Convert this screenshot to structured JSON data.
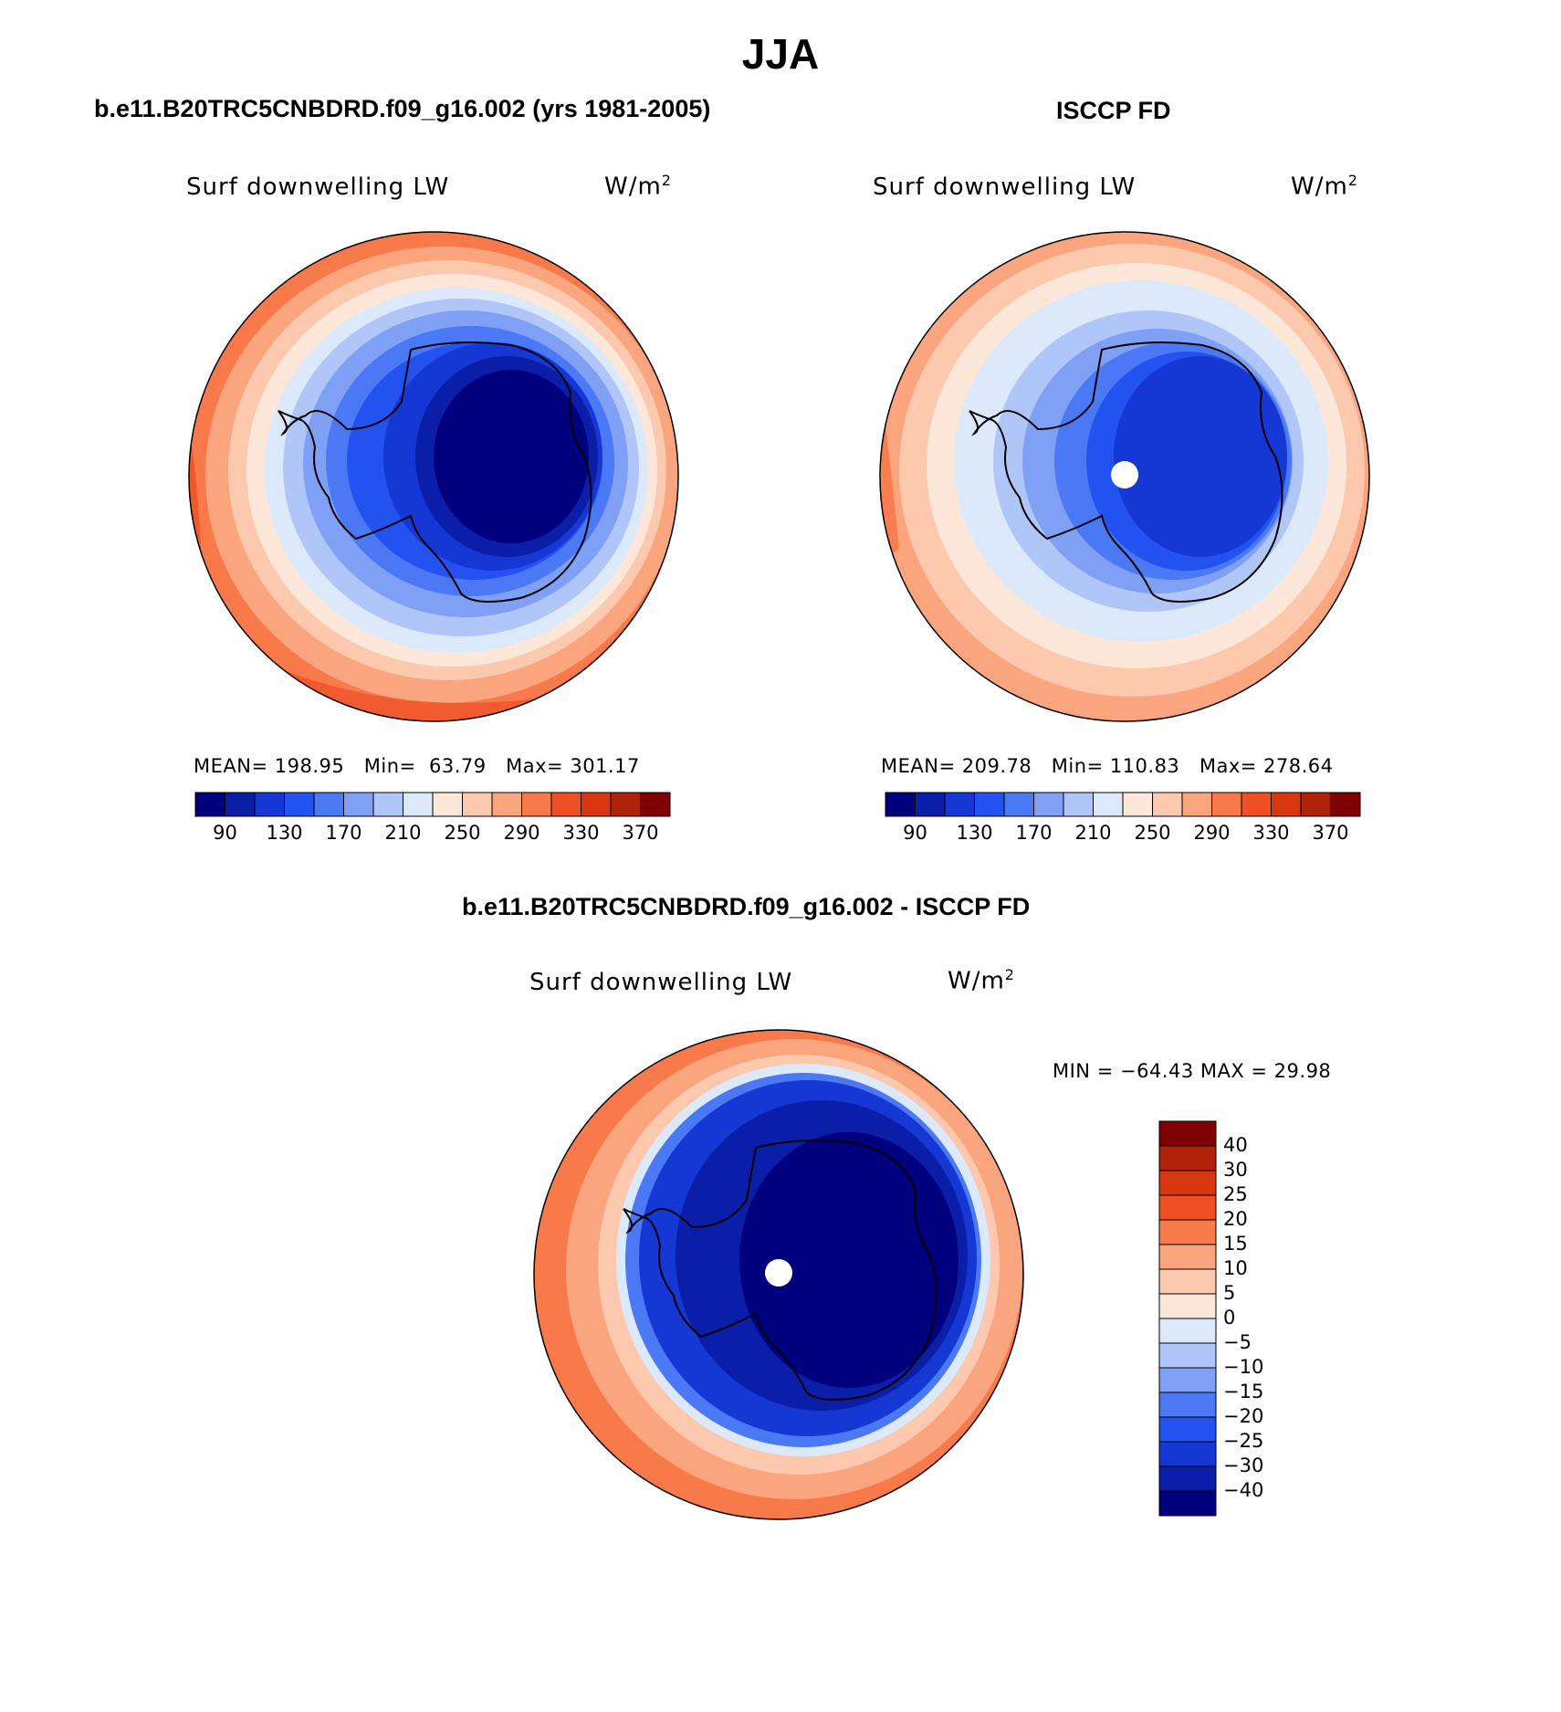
{
  "title": "JJA",
  "panels": [
    {
      "id": "model",
      "subtitle": "b.e11.B20TRC5CNBDRD.f09_g16.002 (yrs 1981-2005)",
      "variable": "Surf downwelling LW",
      "units_base": "W/m",
      "units_exp": "2",
      "stats": {
        "mean_label": "MEAN=",
        "mean": "198.95",
        "min_label": "Min=",
        "min": "63.79",
        "max_label": "Max=",
        "max": "301.17"
      },
      "colorbar_ticks": [
        "90",
        "130",
        "170",
        "210",
        "250",
        "290",
        "330",
        "370"
      ]
    },
    {
      "id": "obs",
      "subtitle": "ISCCP FD",
      "variable": "Surf downwelling LW",
      "units_base": "W/m",
      "units_exp": "2",
      "stats": {
        "mean_label": "MEAN=",
        "mean": "209.78",
        "min_label": "Min=",
        "min": "110.83",
        "max_label": "Max=",
        "max": "278.64"
      },
      "colorbar_ticks": [
        "90",
        "130",
        "170",
        "210",
        "250",
        "290",
        "330",
        "370"
      ]
    }
  ],
  "difference": {
    "subtitle": "b.e11.B20TRC5CNBDRD.f09_g16.002 - ISCCP FD",
    "variable": "Surf downwelling LW",
    "units_base": "W/m",
    "units_exp": "2",
    "minmax_text": "MIN = −64.43 MAX =   29.98",
    "colorbar_ticks": [
      "40",
      "30",
      "25",
      "20",
      "15",
      "10",
      "5",
      "0",
      "−5",
      "−10",
      "−15",
      "−20",
      "−25",
      "−30",
      "−40"
    ]
  },
  "palette_abs": [
    "#00007f",
    "#0a1ea8",
    "#1537d4",
    "#2452f0",
    "#4b78f5",
    "#7fa0f5",
    "#b0c6f8",
    "#dce9fb",
    "#fde7d8",
    "#fcc8ae",
    "#fba57f",
    "#f87a4a",
    "#f04f24",
    "#d7360f",
    "#b1220a",
    "#7f0000"
  ],
  "palette_diff": [
    "#00007f",
    "#0a1ea8",
    "#1537d4",
    "#2452f0",
    "#4b78f5",
    "#7fa0f5",
    "#b0c6f8",
    "#dce9fb",
    "#fde7d8",
    "#fcc8ae",
    "#fba57f",
    "#f87a4a",
    "#f04f24",
    "#d7360f",
    "#b1220a",
    "#7f0000"
  ]
}
